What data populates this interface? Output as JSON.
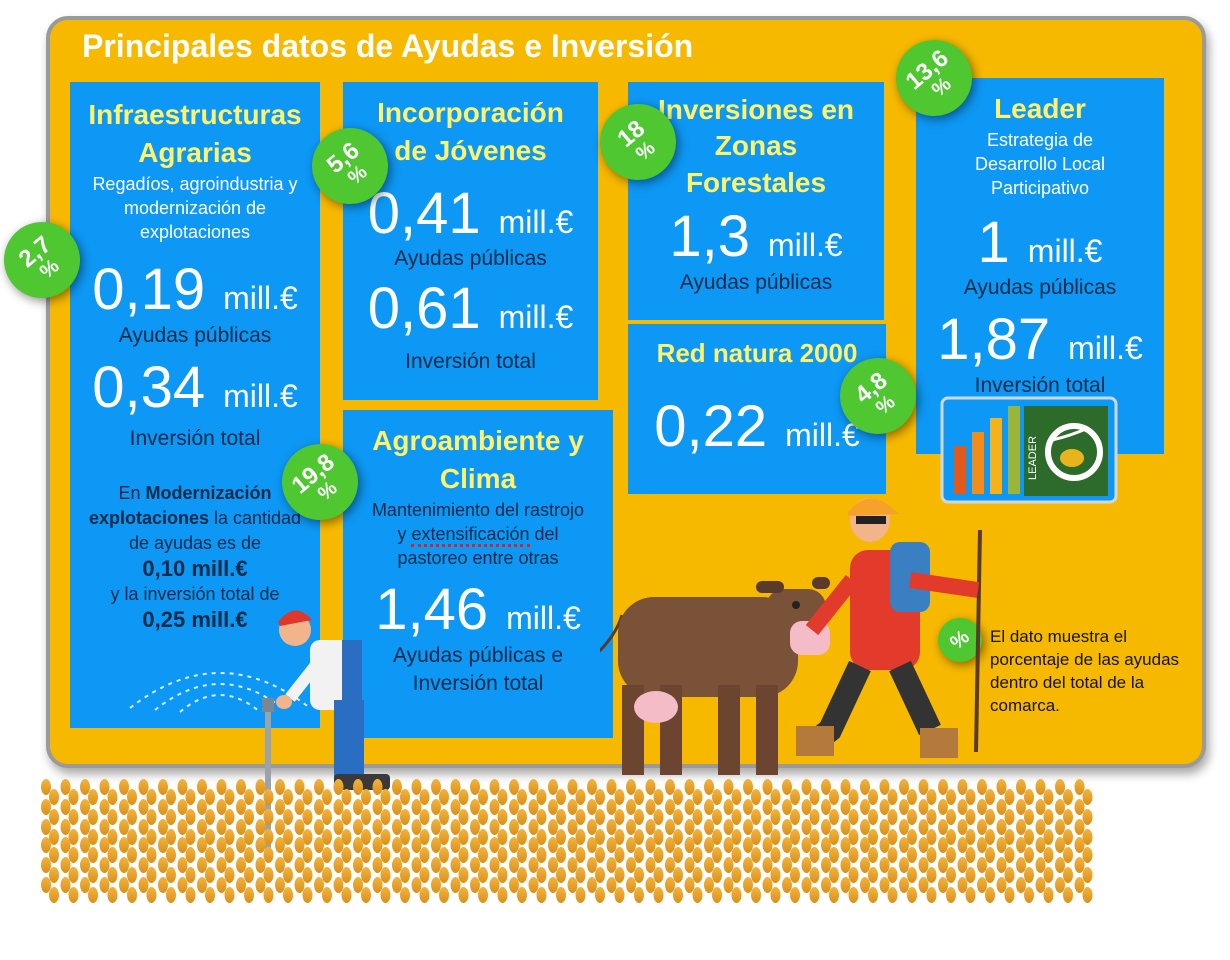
{
  "title": "Principales datos de Ayudas e Inversión",
  "unit": "mill.€",
  "cards": {
    "infra": {
      "head1": "Infraestructuras",
      "head2": "Agrarias",
      "sub": "Regadíos, agroindustria y modernización de explotaciones",
      "ayudas_val": "0,19",
      "ayudas_label": "Ayudas públicas",
      "inv_val": "0,34",
      "inv_label": "Inversión total",
      "note_1": "En ",
      "note_bold": "Modernización explotaciones",
      "note_2": " la cantidad de ayudas es de",
      "note_val1": "0,10 mill.€",
      "note_3": "y la inversión total de",
      "note_val2": "0,25 mill.€",
      "badge": "2,7"
    },
    "jovenes": {
      "head1": "Incorporación",
      "head2": "de Jóvenes",
      "ayudas_val": "0,41",
      "ayudas_label": "Ayudas públicas",
      "inv_val": "0,61",
      "inv_label": "Inversión total",
      "badge": "5,6"
    },
    "forestal": {
      "head1": "Inversiones en",
      "head2": "Zonas",
      "head3": "Forestales",
      "ayudas_val": "1,3",
      "ayudas_label": "Ayudas públicas",
      "badge": "18"
    },
    "natura": {
      "head": "Red natura 2000",
      "val": "0,22",
      "badge": "4,8"
    },
    "leader": {
      "head": "Leader",
      "sub": "Estrategia de Desarrollo Local Participativo",
      "ayudas_val": "1",
      "ayudas_label": "Ayudas públicas",
      "inv_val": "1,87",
      "inv_label": "Inversión total",
      "logo_text": "LEADER",
      "badge": "13,6"
    },
    "agroamb": {
      "head1": "Agroambiente y",
      "head2": "Clima",
      "sub1": "Mantenimiento del rastrojo",
      "sub2a": "y ",
      "sub2b": "extensificación",
      "sub2c": " del",
      "sub3": "pastoreo entre otras",
      "val": "1,46",
      "label": "Ayudas públicas e Inversión total",
      "badge": "19,8"
    }
  },
  "percent_sign": "%",
  "legend": {
    "symbol": "%",
    "text": "El dato muestra el porcentaje de las ayudas dentro del total de la comarca."
  },
  "colors": {
    "board": "#f7b900",
    "card": "#0d98f5",
    "heading": "#fff36b",
    "badge": "#4ec731"
  }
}
